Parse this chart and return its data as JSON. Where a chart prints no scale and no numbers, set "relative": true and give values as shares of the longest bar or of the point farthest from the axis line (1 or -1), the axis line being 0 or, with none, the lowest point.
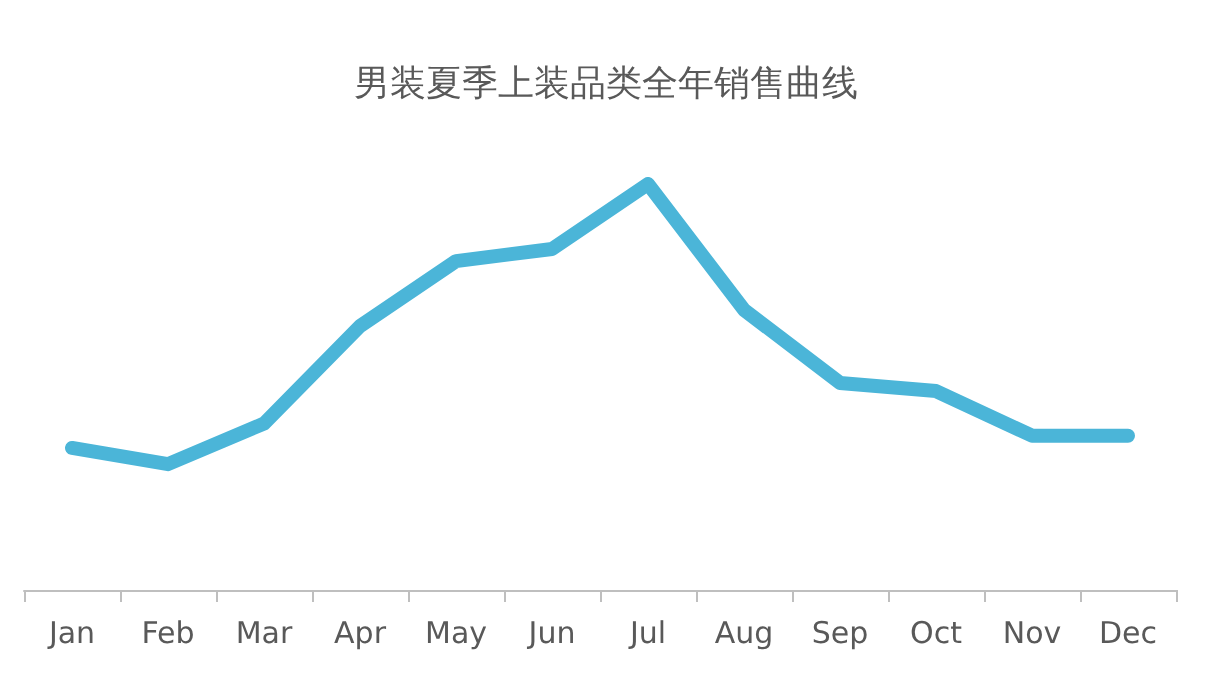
{
  "chart_data": {
    "type": "line",
    "title": "男装夏季上装品类全年销售曲线",
    "relative": true,
    "grid": false,
    "line_style": "solid",
    "categories": [
      "Jan",
      "Feb",
      "Mar",
      "Apr",
      "May",
      "Jun",
      "Jul",
      "Aug",
      "Sep",
      "Oct",
      "Nov",
      "Dec"
    ],
    "series": [
      {
        "color": "#4bb5d8",
        "values": [
          0.35,
          0.31,
          0.41,
          0.65,
          0.81,
          0.84,
          1,
          0.69,
          0.51,
          0.49,
          0.38,
          0.38
        ]
      }
    ]
  }
}
